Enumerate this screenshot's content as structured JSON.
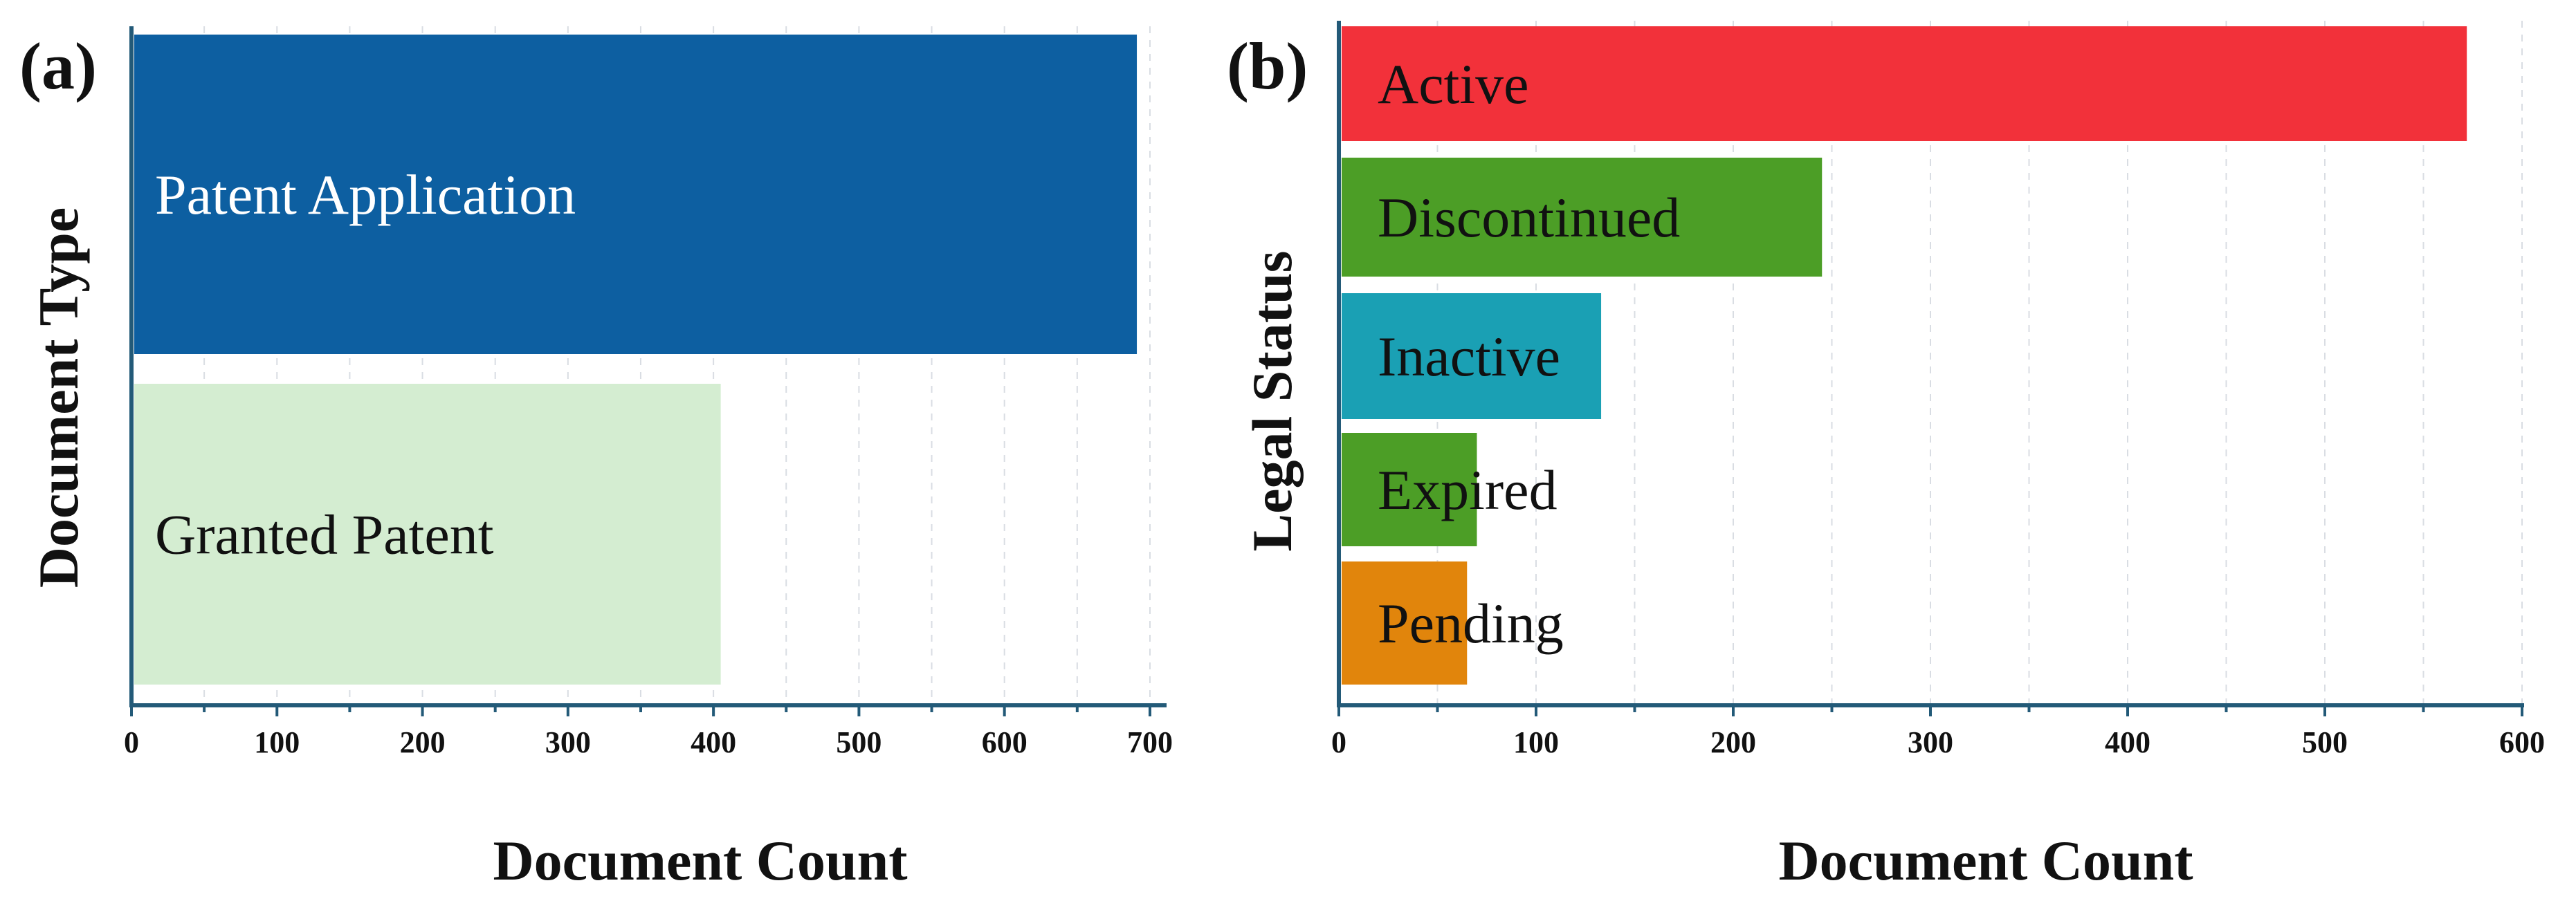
{
  "chart_data": [
    {
      "type": "bar",
      "orientation": "horizontal",
      "panel": "(a)",
      "title": "",
      "xlabel": "Document Count",
      "ylabel": "Document Type",
      "xlim": [
        0,
        710
      ],
      "xticks": [
        0,
        100,
        200,
        300,
        400,
        500,
        600,
        700
      ],
      "grid": true,
      "categories": [
        "Patent Application",
        "Granted Patent"
      ],
      "values": [
        691,
        405
      ],
      "colors": [
        "#0d5fa1",
        "#d4edd1"
      ],
      "label_colors": [
        "#ffffff",
        "#111111"
      ]
    },
    {
      "type": "bar",
      "orientation": "horizontal",
      "panel": "(b)",
      "title": "",
      "xlabel": "Document Count",
      "ylabel": "Legal Status",
      "xlim": [
        0,
        600
      ],
      "xticks": [
        0,
        100,
        200,
        300,
        400,
        500,
        600
      ],
      "grid": true,
      "categories": [
        "Active",
        "Discontinued",
        "Inactive",
        "Expired",
        "Pending"
      ],
      "values": [
        572,
        245,
        133,
        70,
        65
      ],
      "colors": [
        "#f2313a",
        "#4c9e26",
        "#1aa0b4",
        "#4c9e26",
        "#e1850c"
      ],
      "label_colors": [
        "#111111",
        "#111111",
        "#111111",
        "#111111",
        "#111111"
      ]
    }
  ]
}
